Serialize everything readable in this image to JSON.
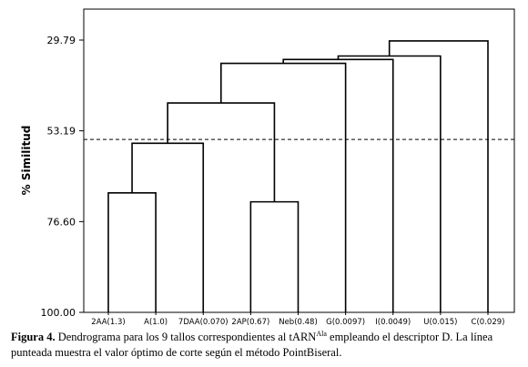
{
  "chart_data": {
    "type": "dendrogram",
    "ylabel": "% Similitud",
    "yticks": [
      29.79,
      53.19,
      76.6,
      100.0
    ],
    "yticks_text": [
      "29.79",
      "53.19",
      "76.60",
      "100.00"
    ],
    "ylim": [
      100.0,
      23.0
    ],
    "leaves": [
      "2AA(1.3)",
      "A(1.0)",
      "7DAA(0.070)",
      "2AP(0.67)",
      "Neb(0.48)",
      "G(0.0097)",
      "I(0.0049)",
      "U(0.015)",
      "C(0.029)"
    ],
    "merges": [
      {
        "left": "leaf:0",
        "right": "leaf:1",
        "similarity": 69.2
      },
      {
        "left": "node:0",
        "right": "leaf:2",
        "similarity": 56.4
      },
      {
        "left": "leaf:3",
        "right": "leaf:4",
        "similarity": 71.5
      },
      {
        "left": "node:1",
        "right": "node:2",
        "similarity": 46.0
      },
      {
        "left": "node:3",
        "right": "leaf:5",
        "similarity": 35.8
      },
      {
        "left": "node:4",
        "right": "leaf:6",
        "similarity": 34.8
      },
      {
        "left": "node:5",
        "right": "leaf:7",
        "similarity": 33.9
      },
      {
        "left": "node:6",
        "right": "leaf:8",
        "similarity": 30.0
      }
    ],
    "cut_line": 55.4,
    "grid": false,
    "legend": "none"
  },
  "caption": {
    "label": "Figura 4.",
    "text_before_sup": " Dendrograma para los 9 tallos correspondientes al tARN",
    "sup": "Ala",
    "text_after_sup": " empleando el descriptor D. La línea punteada muestra el valor óptimo de corte según el método PointBiseral."
  }
}
